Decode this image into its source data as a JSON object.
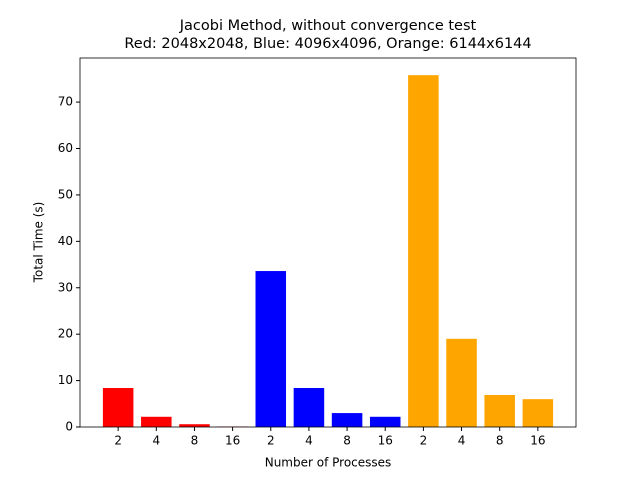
{
  "chart_data": {
    "type": "bar",
    "title": "Jacobi Method, without convergence test",
    "subtitle": "Red: 2048x2048, Blue: 4096x4096, Orange: 6144x6144",
    "x_label": "Number of Processes",
    "y_label": "Total Time (s)",
    "categories": [
      "2",
      "4",
      "8",
      "16",
      "2",
      "4",
      "8",
      "16",
      "2",
      "4",
      "8",
      "16"
    ],
    "values": [
      8.4,
      2.2,
      0.6,
      0.1,
      33.6,
      8.4,
      3.0,
      2.2,
      75.8,
      19.0,
      6.9,
      6.0
    ],
    "colors": [
      "#ff0000",
      "#ff0000",
      "#ff0000",
      "#ff0000",
      "#0000ff",
      "#0000ff",
      "#0000ff",
      "#0000ff",
      "#ffa500",
      "#ffa500",
      "#ffa500",
      "#ffa500"
    ],
    "ylim": [
      0,
      79.5
    ],
    "yticks": [
      0,
      10,
      20,
      30,
      40,
      50,
      60,
      70
    ],
    "grid": false
  }
}
